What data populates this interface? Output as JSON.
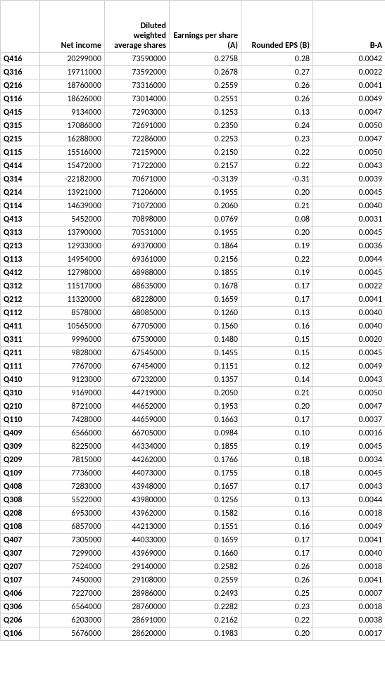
{
  "table": {
    "columns": [
      "",
      "Net income",
      "Diluted weighted average shares",
      "Earnings per share (A)",
      "Rounded EPS (B)",
      "B-A"
    ],
    "col_align": [
      "left",
      "right",
      "right",
      "right",
      "right",
      "right"
    ],
    "header_fontsize": 12,
    "header_fontweight": "bold",
    "cell_fontsize": 12,
    "border_color": "#d0d0d0",
    "background_color": "#ffffff",
    "text_color": "#000000",
    "rows": [
      [
        "Q416",
        "20299000",
        "73590000",
        "0.2758",
        "0.28",
        "0.0042"
      ],
      [
        "Q316",
        "19711000",
        "73592000",
        "0.2678",
        "0.27",
        "0.0022"
      ],
      [
        "Q216",
        "18760000",
        "73316000",
        "0.2559",
        "0.26",
        "0.0041"
      ],
      [
        "Q116",
        "18626000",
        "73014000",
        "0.2551",
        "0.26",
        "0.0049"
      ],
      [
        "Q415",
        "9134000",
        "72903000",
        "0.1253",
        "0.13",
        "0.0047"
      ],
      [
        "Q315",
        "17086000",
        "72691000",
        "0.2350",
        "0.24",
        "0.0050"
      ],
      [
        "Q215",
        "16288000",
        "72286000",
        "0.2253",
        "0.23",
        "0.0047"
      ],
      [
        "Q115",
        "15516000",
        "72159000",
        "0.2150",
        "0.22",
        "0.0050"
      ],
      [
        "Q414",
        "15472000",
        "71722000",
        "0.2157",
        "0.22",
        "0.0043"
      ],
      [
        "Q314",
        "-22182000",
        "70671000",
        "-0.3139",
        "-0.31",
        "0.0039"
      ],
      [
        "Q214",
        "13921000",
        "71206000",
        "0.1955",
        "0.20",
        "0.0045"
      ],
      [
        "Q114",
        "14639000",
        "71072000",
        "0.2060",
        "0.21",
        "0.0040"
      ],
      [
        "Q413",
        "5452000",
        "70898000",
        "0.0769",
        "0.08",
        "0.0031"
      ],
      [
        "Q313",
        "13790000",
        "70531000",
        "0.1955",
        "0.20",
        "0.0045"
      ],
      [
        "Q213",
        "12933000",
        "69370000",
        "0.1864",
        "0.19",
        "0.0036"
      ],
      [
        "Q113",
        "14954000",
        "69361000",
        "0.2156",
        "0.22",
        "0.0044"
      ],
      [
        "Q412",
        "12798000",
        "68988000",
        "0.1855",
        "0.19",
        "0.0045"
      ],
      [
        "Q312",
        "11517000",
        "68635000",
        "0.1678",
        "0.17",
        "0.0022"
      ],
      [
        "Q212",
        "11320000",
        "68228000",
        "0.1659",
        "0.17",
        "0.0041"
      ],
      [
        "Q112",
        "8578000",
        "68085000",
        "0.1260",
        "0.13",
        "0.0040"
      ],
      [
        "Q411",
        "10565000",
        "67705000",
        "0.1560",
        "0.16",
        "0.0040"
      ],
      [
        "Q311",
        "9996000",
        "67530000",
        "0.1480",
        "0.15",
        "0.0020"
      ],
      [
        "Q211",
        "9828000",
        "67545000",
        "0.1455",
        "0.15",
        "0.0045"
      ],
      [
        "Q111",
        "7767000",
        "67454000",
        "0.1151",
        "0.12",
        "0.0049"
      ],
      [
        "Q410",
        "9123000",
        "67232000",
        "0.1357",
        "0.14",
        "0.0043"
      ],
      [
        "Q310",
        "9169000",
        "44719000",
        "0.2050",
        "0.21",
        "0.0050"
      ],
      [
        "Q210",
        "8721000",
        "44652000",
        "0.1953",
        "0.20",
        "0.0047"
      ],
      [
        "Q110",
        "7428000",
        "44659000",
        "0.1663",
        "0.17",
        "0.0037"
      ],
      [
        "Q409",
        "6566000",
        "66705000",
        "0.0984",
        "0.10",
        "0.0016"
      ],
      [
        "Q309",
        "8225000",
        "44334000",
        "0.1855",
        "0.19",
        "0.0045"
      ],
      [
        "Q209",
        "7815000",
        "44262000",
        "0.1766",
        "0.18",
        "0.0034"
      ],
      [
        "Q109",
        "7736000",
        "44073000",
        "0.1755",
        "0.18",
        "0.0045"
      ],
      [
        "Q408",
        "7283000",
        "43948000",
        "0.1657",
        "0.17",
        "0.0043"
      ],
      [
        "Q308",
        "5522000",
        "43980000",
        "0.1256",
        "0.13",
        "0.0044"
      ],
      [
        "Q208",
        "6953000",
        "43962000",
        "0.1582",
        "0.16",
        "0.0018"
      ],
      [
        "Q108",
        "6857000",
        "44213000",
        "0.1551",
        "0.16",
        "0.0049"
      ],
      [
        "Q407",
        "7305000",
        "44033000",
        "0.1659",
        "0.17",
        "0.0041"
      ],
      [
        "Q307",
        "7299000",
        "43969000",
        "0.1660",
        "0.17",
        "0.0040"
      ],
      [
        "Q207",
        "7524000",
        "29140000",
        "0.2582",
        "0.26",
        "0.0018"
      ],
      [
        "Q107",
        "7450000",
        "29108000",
        "0.2559",
        "0.26",
        "0.0041"
      ],
      [
        "Q406",
        "7227000",
        "28986000",
        "0.2493",
        "0.25",
        "0.0007"
      ],
      [
        "Q306",
        "6564000",
        "28760000",
        "0.2282",
        "0.23",
        "0.0018"
      ],
      [
        "Q206",
        "6203000",
        "28691000",
        "0.2162",
        "0.22",
        "0.0038"
      ],
      [
        "Q106",
        "5676000",
        "28620000",
        "0.1983",
        "0.20",
        "0.0017"
      ]
    ]
  }
}
